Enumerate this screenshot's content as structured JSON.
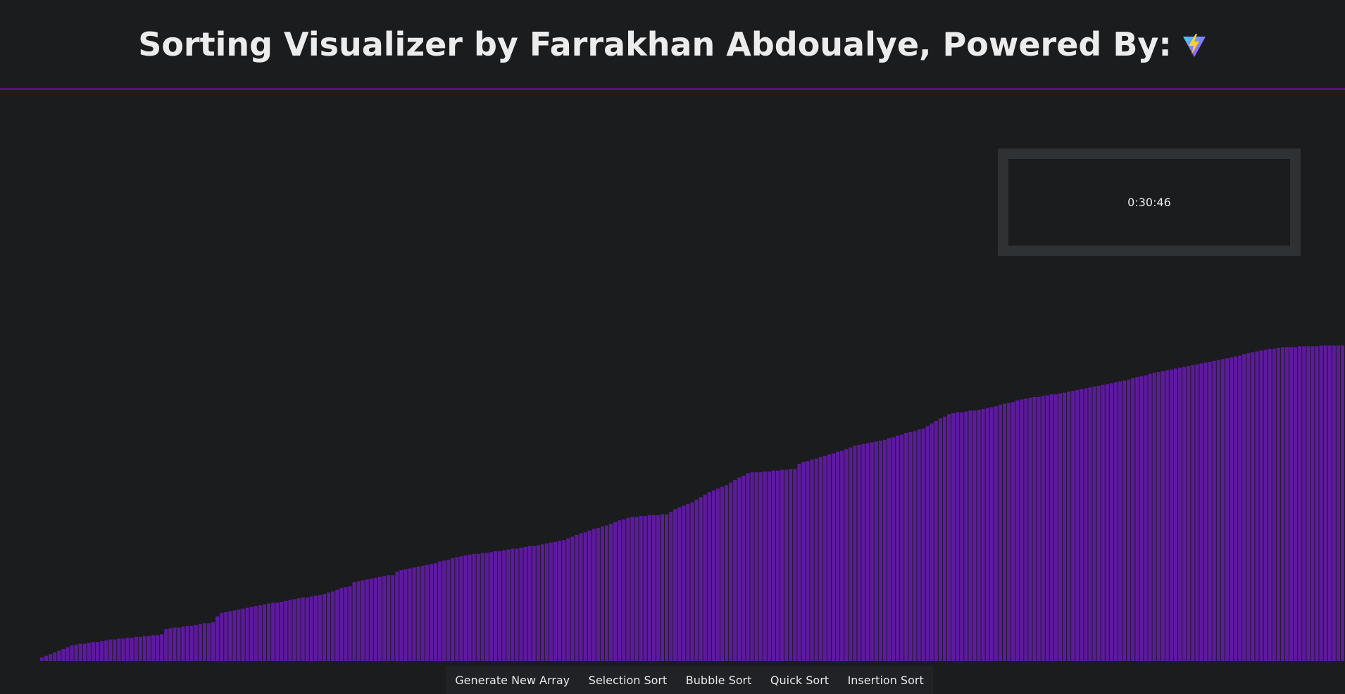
{
  "header": {
    "title": "Sorting Visualizer by Farrakhan Abdoualye, Powered By:"
  },
  "timer": {
    "text": "0:30:46"
  },
  "array": {
    "color": "#5d1a9e",
    "values": [
      4,
      6,
      8,
      10,
      12,
      14,
      16,
      18,
      19,
      20,
      20,
      21,
      22,
      22,
      23,
      24,
      25,
      25,
      26,
      26,
      27,
      27,
      28,
      28,
      29,
      29,
      30,
      30,
      31,
      37,
      38,
      39,
      39,
      40,
      41,
      41,
      42,
      43,
      44,
      44,
      45,
      52,
      56,
      57,
      58,
      59,
      60,
      61,
      62,
      63,
      64,
      65,
      66,
      67,
      68,
      68,
      69,
      70,
      71,
      72,
      73,
      74,
      74,
      75,
      76,
      77,
      78,
      80,
      81,
      83,
      85,
      86,
      87,
      92,
      93,
      94,
      95,
      96,
      97,
      98,
      99,
      100,
      100,
      104,
      106,
      107,
      108,
      109,
      110,
      111,
      112,
      113,
      114,
      116,
      117,
      118,
      120,
      121,
      122,
      123,
      124,
      125,
      125,
      126,
      126,
      127,
      128,
      128,
      129,
      130,
      131,
      131,
      132,
      133,
      134,
      134,
      135,
      136,
      137,
      138,
      139,
      140,
      141,
      143,
      145,
      147,
      149,
      150,
      152,
      154,
      155,
      157,
      158,
      160,
      162,
      164,
      165,
      167,
      168,
      168,
      169,
      169,
      170,
      170,
      170,
      171,
      171,
      174,
      177,
      179,
      181,
      183,
      185,
      188,
      191,
      194,
      197,
      199,
      201,
      203,
      205,
      208,
      211,
      214,
      216,
      219,
      220,
      220,
      220,
      221,
      221,
      222,
      222,
      223,
      223,
      224,
      224,
      230,
      232,
      233,
      235,
      236,
      238,
      239,
      241,
      242,
      244,
      245,
      247,
      249,
      251,
      252,
      253,
      254,
      255,
      256,
      257,
      258,
      260,
      261,
      263,
      264,
      266,
      267,
      268,
      270,
      271,
      274,
      277,
      280,
      283,
      285,
      288,
      289,
      290,
      290,
      291,
      292,
      292,
      293,
      294,
      295,
      296,
      297,
      299,
      300,
      301,
      302,
      304,
      305,
      306,
      307,
      308,
      308,
      309,
      310,
      311,
      311,
      312,
      313,
      314,
      315,
      316,
      317,
      318,
      319,
      320,
      321,
      322,
      323,
      324,
      325,
      326,
      327,
      328,
      330,
      331,
      332,
      333,
      335,
      336,
      337,
      338,
      339,
      340,
      341,
      342,
      343,
      344,
      345,
      346,
      347,
      348,
      349,
      350,
      351,
      352,
      353,
      354,
      355,
      356,
      358,
      359,
      360,
      361,
      362,
      363,
      364,
      364,
      365,
      366,
      366,
      366,
      366,
      367,
      367,
      367,
      367,
      367,
      368,
      368,
      368,
      368,
      368,
      368
    ]
  },
  "buttons": [
    "Generate New Array",
    "Selection Sort",
    "Bubble Sort",
    "Quick Sort",
    "Insertion Sort"
  ]
}
